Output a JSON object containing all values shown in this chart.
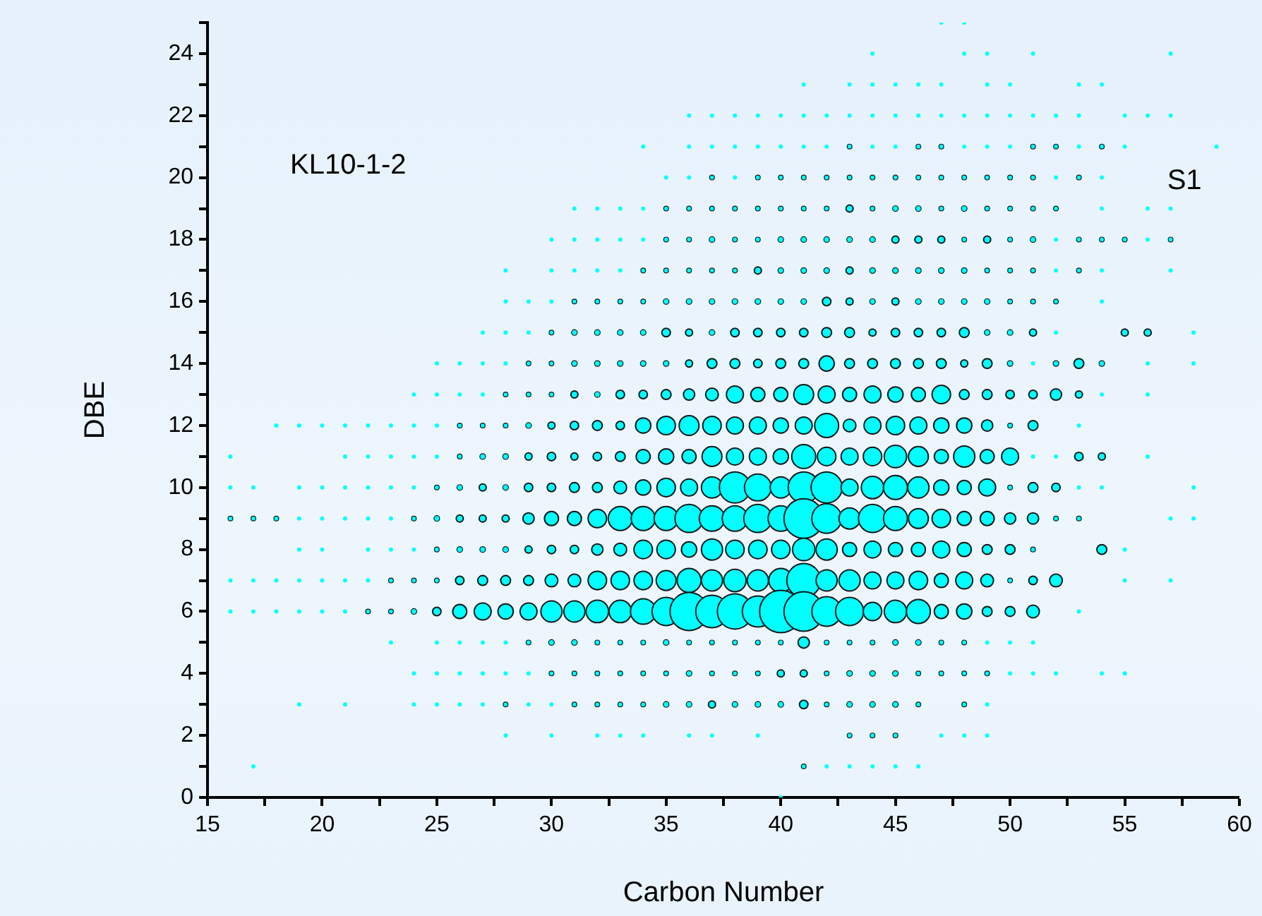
{
  "chart_data": {
    "type": "bubble",
    "xlabel": "Carbon Number",
    "ylabel": "DBE",
    "color": "#00ffff",
    "annotations": [
      "KL10-1-2",
      "S1"
    ],
    "xlim": [
      15,
      60
    ],
    "ylim": [
      0,
      25
    ],
    "xticks": [
      15,
      {
        "value": 17.5,
        "label": null
      },
      20,
      {
        "value": 22.5,
        "label": null
      },
      25,
      {
        "value": 27.5,
        "label": null
      },
      30,
      {
        "value": 32.5,
        "label": null
      },
      35,
      {
        "value": 37.5,
        "label": null
      },
      40,
      {
        "value": 42.5,
        "label": null
      },
      45,
      {
        "value": 47.5,
        "label": null
      },
      50,
      {
        "value": 52.5,
        "label": null
      },
      55,
      {
        "value": 57.5,
        "label": null
      },
      60
    ],
    "yticks": [
      0,
      {
        "value": 1,
        "label": null
      },
      2,
      {
        "value": 3,
        "label": null
      },
      4,
      {
        "value": 5,
        "label": null
      },
      6,
      {
        "value": 7,
        "label": null
      },
      8,
      {
        "value": 9,
        "label": null
      },
      10,
      {
        "value": 11,
        "label": null
      },
      12,
      {
        "value": 13,
        "label": null
      },
      14,
      {
        "value": 15,
        "label": null
      },
      16,
      {
        "value": 17,
        "label": null
      },
      18,
      {
        "value": 19,
        "label": null
      },
      20,
      {
        "value": 21,
        "label": null
      },
      22,
      {
        "value": 23,
        "label": null
      },
      24,
      {
        "value": 25,
        "label": null
      }
    ],
    "series": [
      {
        "x": [
          40
        ],
        "values": [
          0
        ],
        "sizes": [
          0.01
        ]
      },
      {
        "x": [
          17,
          41,
          42,
          43,
          44,
          45,
          46
        ],
        "values": [
          1,
          1,
          1,
          1,
          1,
          1,
          1
        ],
        "sizes": [
          0.01,
          0.013,
          0.01,
          0.01,
          0.01,
          0.01,
          0.01
        ]
      },
      {
        "x": [
          28,
          30,
          32,
          33,
          34,
          36,
          37,
          39,
          43,
          44,
          45,
          47,
          48,
          49
        ],
        "values": [
          2,
          2,
          2,
          2,
          2,
          2,
          2,
          2,
          2,
          2,
          2,
          2,
          2,
          2
        ],
        "sizes": [
          0.01,
          0.01,
          0.01,
          0.01,
          0.01,
          0.01,
          0.01,
          0.01,
          0.013,
          0.013,
          0.013,
          0.01,
          0.01,
          0.01
        ]
      },
      {
        "x": [
          19,
          21,
          24,
          25,
          26,
          27,
          28,
          29,
          30,
          31,
          32,
          33,
          34,
          35,
          36,
          37,
          38,
          39,
          40,
          41,
          42,
          43,
          44,
          45,
          46,
          48,
          49
        ],
        "values": [
          3,
          3,
          3,
          3,
          3,
          3,
          3,
          3,
          3,
          3,
          3,
          3,
          3,
          3,
          3,
          3,
          3,
          3,
          3,
          3,
          3,
          3,
          3,
          3,
          3,
          3,
          3
        ],
        "sizes": [
          0.01,
          0.01,
          0.01,
          0.01,
          0.01,
          0.01,
          0.013,
          0.01,
          0.01,
          0.013,
          0.013,
          0.013,
          0.013,
          0.018,
          0.018,
          0.028,
          0.018,
          0.018,
          0.018,
          0.04,
          0.013,
          0.018,
          0.018,
          0.018,
          0.013,
          0.013,
          0.01
        ]
      },
      {
        "x": [
          24,
          25,
          26,
          27,
          28,
          29,
          30,
          31,
          32,
          33,
          34,
          35,
          36,
          37,
          38,
          39,
          40,
          41,
          42,
          43,
          44,
          45,
          46,
          47,
          48,
          49,
          50,
          51,
          52,
          54,
          55
        ],
        "values": [
          4,
          4,
          4,
          4,
          4,
          4,
          4,
          4,
          4,
          4,
          4,
          4,
          4,
          4,
          4,
          4,
          4,
          4,
          4,
          4,
          4,
          4,
          4,
          4,
          4,
          4,
          4,
          4,
          4,
          4,
          4
        ],
        "sizes": [
          0.01,
          0.01,
          0.01,
          0.01,
          0.01,
          0.01,
          0.013,
          0.013,
          0.013,
          0.013,
          0.013,
          0.013,
          0.018,
          0.013,
          0.013,
          0.013,
          0.028,
          0.028,
          0.013,
          0.018,
          0.018,
          0.018,
          0.013,
          0.013,
          0.013,
          0.013,
          0.01,
          0.01,
          0.01,
          0.01,
          0.01
        ]
      },
      {
        "x": [
          23,
          25,
          26,
          27,
          28,
          29,
          30,
          31,
          32,
          33,
          34,
          35,
          36,
          37,
          38,
          39,
          40,
          41,
          42,
          43,
          44,
          45,
          46,
          47,
          48,
          49,
          50,
          51
        ],
        "values": [
          5,
          5,
          5,
          5,
          5,
          5,
          5,
          5,
          5,
          5,
          5,
          5,
          5,
          5,
          5,
          5,
          5,
          5,
          5,
          5,
          5,
          5,
          5,
          5,
          5,
          5,
          5,
          5
        ],
        "sizes": [
          0.01,
          0.01,
          0.01,
          0.01,
          0.01,
          0.013,
          0.018,
          0.018,
          0.013,
          0.013,
          0.013,
          0.018,
          0.013,
          0.013,
          0.013,
          0.013,
          0.013,
          0.071,
          0.013,
          0.013,
          0.013,
          0.018,
          0.018,
          0.013,
          0.013,
          0.01,
          0.01,
          0.01
        ]
      },
      {
        "x": [
          16,
          17,
          18,
          19,
          20,
          21,
          22,
          23,
          24,
          25,
          26,
          27,
          28,
          29,
          30,
          31,
          32,
          33,
          34,
          35,
          36,
          37,
          38,
          39,
          40,
          41,
          42,
          43,
          44,
          45,
          46,
          47,
          48,
          49,
          50,
          51,
          53
        ],
        "values": [
          6,
          6,
          6,
          6,
          6,
          6,
          6,
          6,
          6,
          6,
          6,
          6,
          6,
          6,
          6,
          6,
          6,
          6,
          6,
          6,
          6,
          6,
          6,
          6,
          6,
          6,
          6,
          6,
          6,
          6,
          6,
          6,
          6,
          6,
          6,
          6,
          6
        ],
        "sizes": [
          0.01,
          0.01,
          0.01,
          0.01,
          0.01,
          0.01,
          0.013,
          0.013,
          0.018,
          0.04,
          0.11,
          0.16,
          0.13,
          0.16,
          0.25,
          0.25,
          0.28,
          0.28,
          0.36,
          0.44,
          0.81,
          0.59,
          0.69,
          0.54,
          1,
          0.87,
          0.49,
          0.44,
          0.19,
          0.28,
          0.32,
          0.11,
          0.13,
          0.054,
          0.054,
          0.09,
          0.01
        ]
      },
      {
        "x": [
          16,
          17,
          18,
          19,
          20,
          21,
          22,
          23,
          24,
          25,
          26,
          27,
          28,
          29,
          30,
          31,
          32,
          33,
          34,
          35,
          36,
          37,
          38,
          39,
          40,
          41,
          42,
          43,
          44,
          45,
          46,
          47,
          48,
          49,
          50,
          51,
          52,
          55,
          57
        ],
        "values": [
          7,
          7,
          7,
          7,
          7,
          7,
          7,
          7,
          7,
          7,
          7,
          7,
          7,
          7,
          7,
          7,
          7,
          7,
          7,
          7,
          7,
          7,
          7,
          7,
          7,
          7,
          7,
          7,
          7,
          7,
          7,
          7,
          7,
          7,
          7,
          7,
          7,
          7,
          7
        ],
        "sizes": [
          0.01,
          0.01,
          0.01,
          0.01,
          0.01,
          0.01,
          0.01,
          0.013,
          0.013,
          0.013,
          0.04,
          0.054,
          0.054,
          0.054,
          0.09,
          0.09,
          0.19,
          0.19,
          0.19,
          0.22,
          0.32,
          0.25,
          0.28,
          0.25,
          0.32,
          0.64,
          0.25,
          0.25,
          0.16,
          0.16,
          0.19,
          0.11,
          0.16,
          0.09,
          0.013,
          0.04,
          0.09,
          0.01,
          0.01
        ]
      },
      {
        "x": [
          19,
          20,
          22,
          23,
          24,
          25,
          26,
          27,
          28,
          29,
          30,
          31,
          32,
          33,
          34,
          35,
          36,
          37,
          38,
          39,
          40,
          41,
          42,
          43,
          44,
          45,
          46,
          47,
          48,
          49,
          50,
          51,
          54,
          55
        ],
        "values": [
          8,
          8,
          8,
          8,
          8,
          8,
          8,
          8,
          8,
          8,
          8,
          8,
          8,
          8,
          8,
          8,
          8,
          8,
          8,
          8,
          8,
          8,
          8,
          8,
          8,
          8,
          8,
          8,
          8,
          8,
          8,
          8,
          8,
          8
        ],
        "sizes": [
          0.01,
          0.01,
          0.01,
          0.01,
          0.01,
          0.013,
          0.018,
          0.018,
          0.018,
          0.028,
          0.04,
          0.04,
          0.071,
          0.09,
          0.19,
          0.19,
          0.13,
          0.25,
          0.19,
          0.19,
          0.19,
          0.28,
          0.25,
          0.11,
          0.16,
          0.11,
          0.11,
          0.16,
          0.11,
          0.054,
          0.054,
          0.013,
          0.054,
          0.01
        ]
      },
      {
        "x": [
          16,
          17,
          18,
          19,
          20,
          21,
          22,
          23,
          24,
          25,
          26,
          27,
          28,
          29,
          30,
          31,
          32,
          33,
          34,
          35,
          36,
          37,
          38,
          39,
          40,
          41,
          42,
          43,
          44,
          45,
          46,
          47,
          48,
          49,
          50,
          51,
          52,
          53,
          57,
          58
        ],
        "values": [
          9,
          9,
          9,
          9,
          9,
          9,
          9,
          9,
          9,
          9,
          9,
          9,
          9,
          9,
          9,
          9,
          9,
          9,
          9,
          9,
          9,
          9,
          9,
          9,
          9,
          9,
          9,
          9,
          9,
          9,
          9,
          9,
          9,
          9,
          9,
          9,
          9,
          9,
          9,
          9
        ],
        "sizes": [
          0.013,
          0.013,
          0.013,
          0.01,
          0.01,
          0.01,
          0.01,
          0.01,
          0.013,
          0.018,
          0.028,
          0.028,
          0.028,
          0.071,
          0.11,
          0.11,
          0.19,
          0.32,
          0.32,
          0.32,
          0.44,
          0.36,
          0.36,
          0.44,
          0.36,
          0.87,
          0.49,
          0.25,
          0.44,
          0.32,
          0.22,
          0.19,
          0.11,
          0.11,
          0.071,
          0.071,
          0.013,
          0.013,
          0.01,
          0.01
        ]
      },
      {
        "x": [
          16,
          17,
          19,
          20,
          21,
          22,
          23,
          24,
          25,
          26,
          27,
          28,
          29,
          30,
          31,
          32,
          33,
          34,
          35,
          36,
          37,
          38,
          39,
          40,
          41,
          42,
          43,
          44,
          45,
          46,
          47,
          48,
          49,
          50,
          51,
          52,
          53,
          54,
          58
        ],
        "values": [
          10,
          10,
          10,
          10,
          10,
          10,
          10,
          10,
          10,
          10,
          10,
          10,
          10,
          10,
          10,
          10,
          10,
          10,
          10,
          10,
          10,
          10,
          10,
          10,
          10,
          10,
          10,
          10,
          10,
          10,
          10,
          10,
          10,
          10,
          10,
          10,
          10,
          10,
          10
        ],
        "sizes": [
          0.01,
          0.01,
          0.01,
          0.01,
          0.01,
          0.01,
          0.01,
          0.01,
          0.013,
          0.018,
          0.028,
          0.018,
          0.04,
          0.04,
          0.054,
          0.054,
          0.09,
          0.13,
          0.19,
          0.16,
          0.25,
          0.54,
          0.4,
          0.25,
          0.54,
          0.54,
          0.16,
          0.28,
          0.32,
          0.25,
          0.13,
          0.11,
          0.16,
          0.013,
          0.054,
          0.04,
          0.01,
          0.01,
          0.01
        ]
      },
      {
        "x": [
          16,
          21,
          22,
          23,
          24,
          25,
          26,
          27,
          28,
          29,
          30,
          31,
          32,
          33,
          34,
          35,
          36,
          37,
          38,
          39,
          40,
          41,
          42,
          43,
          44,
          45,
          46,
          47,
          48,
          49,
          50,
          51,
          52,
          53,
          54,
          56
        ],
        "values": [
          11,
          11,
          11,
          11,
          11,
          11,
          11,
          11,
          11,
          11,
          11,
          11,
          11,
          11,
          11,
          11,
          11,
          11,
          11,
          11,
          11,
          11,
          11,
          11,
          11,
          11,
          11,
          11,
          11,
          11,
          11,
          11,
          11,
          11,
          11,
          11
        ],
        "sizes": [
          0.01,
          0.01,
          0.01,
          0.01,
          0.01,
          0.01,
          0.013,
          0.018,
          0.018,
          0.028,
          0.04,
          0.028,
          0.04,
          0.054,
          0.11,
          0.13,
          0.11,
          0.22,
          0.16,
          0.16,
          0.13,
          0.32,
          0.19,
          0.16,
          0.19,
          0.28,
          0.22,
          0.11,
          0.25,
          0.11,
          0.16,
          0.01,
          0.01,
          0.04,
          0.028,
          0.01
        ]
      },
      {
        "x": [
          18,
          19,
          20,
          21,
          22,
          23,
          24,
          25,
          26,
          27,
          28,
          29,
          30,
          31,
          32,
          33,
          34,
          35,
          36,
          37,
          38,
          39,
          40,
          41,
          42,
          43,
          44,
          45,
          46,
          47,
          48,
          49,
          50,
          51,
          53
        ],
        "values": [
          12,
          12,
          12,
          12,
          12,
          12,
          12,
          12,
          12,
          12,
          12,
          12,
          12,
          12,
          12,
          12,
          12,
          12,
          12,
          12,
          12,
          12,
          12,
          12,
          12,
          12,
          12,
          12,
          12,
          12,
          12,
          12,
          12,
          12,
          12
        ],
        "sizes": [
          0.01,
          0.01,
          0.01,
          0.01,
          0.01,
          0.01,
          0.01,
          0.01,
          0.013,
          0.013,
          0.013,
          0.018,
          0.028,
          0.04,
          0.054,
          0.04,
          0.13,
          0.19,
          0.22,
          0.19,
          0.16,
          0.16,
          0.13,
          0.16,
          0.32,
          0.09,
          0.16,
          0.19,
          0.16,
          0.13,
          0.13,
          0.071,
          0.013,
          0.054,
          0.01
        ]
      },
      {
        "x": [
          24,
          25,
          26,
          27,
          28,
          29,
          30,
          31,
          32,
          33,
          34,
          35,
          36,
          37,
          38,
          39,
          40,
          41,
          42,
          43,
          44,
          45,
          46,
          47,
          48,
          49,
          50,
          51,
          52,
          53,
          54,
          56
        ],
        "values": [
          13,
          13,
          13,
          13,
          13,
          13,
          13,
          13,
          13,
          13,
          13,
          13,
          13,
          13,
          13,
          13,
          13,
          13,
          13,
          13,
          13,
          13,
          13,
          13,
          13,
          13,
          13,
          13,
          13,
          13,
          13,
          13
        ],
        "sizes": [
          0.01,
          0.01,
          0.01,
          0.01,
          0.013,
          0.013,
          0.013,
          0.028,
          0.018,
          0.04,
          0.04,
          0.054,
          0.071,
          0.09,
          0.16,
          0.11,
          0.11,
          0.22,
          0.16,
          0.11,
          0.16,
          0.13,
          0.11,
          0.19,
          0.054,
          0.054,
          0.04,
          0.04,
          0.071,
          0.028,
          0.01,
          0.01
        ]
      },
      {
        "x": [
          25,
          26,
          27,
          28,
          29,
          30,
          31,
          32,
          33,
          34,
          35,
          36,
          37,
          38,
          39,
          40,
          41,
          42,
          43,
          44,
          45,
          46,
          47,
          48,
          49,
          50,
          51,
          52,
          53,
          54,
          56,
          58
        ],
        "values": [
          14,
          14,
          14,
          14,
          14,
          14,
          14,
          14,
          14,
          14,
          14,
          14,
          14,
          14,
          14,
          14,
          14,
          14,
          14,
          14,
          14,
          14,
          14,
          14,
          14,
          14,
          14,
          14,
          14,
          14,
          14,
          14
        ],
        "sizes": [
          0.01,
          0.01,
          0.01,
          0.01,
          0.013,
          0.013,
          0.018,
          0.018,
          0.018,
          0.018,
          0.018,
          0.028,
          0.054,
          0.054,
          0.04,
          0.054,
          0.054,
          0.13,
          0.054,
          0.054,
          0.054,
          0.054,
          0.054,
          0.028,
          0.054,
          0.018,
          0.01,
          0.018,
          0.054,
          0.018,
          0.01,
          0.01
        ]
      },
      {
        "x": [
          27,
          28,
          29,
          30,
          31,
          32,
          33,
          34,
          35,
          36,
          37,
          38,
          39,
          40,
          41,
          42,
          43,
          44,
          45,
          46,
          47,
          48,
          49,
          50,
          51,
          52,
          55,
          56,
          58
        ],
        "values": [
          15,
          15,
          15,
          15,
          15,
          15,
          15,
          15,
          15,
          15,
          15,
          15,
          15,
          15,
          15,
          15,
          15,
          15,
          15,
          15,
          15,
          15,
          15,
          15,
          15,
          15,
          15,
          15,
          15
        ],
        "sizes": [
          0.01,
          0.01,
          0.01,
          0.013,
          0.018,
          0.018,
          0.018,
          0.018,
          0.04,
          0.028,
          0.018,
          0.04,
          0.04,
          0.04,
          0.04,
          0.054,
          0.054,
          0.028,
          0.04,
          0.04,
          0.04,
          0.054,
          0.018,
          0.018,
          0.028,
          0.01,
          0.028,
          0.028,
          0.01
        ]
      },
      {
        "x": [
          28,
          29,
          30,
          31,
          32,
          33,
          34,
          35,
          36,
          37,
          38,
          39,
          40,
          41,
          42,
          43,
          44,
          45,
          46,
          47,
          48,
          49,
          50,
          51,
          52,
          54
        ],
        "values": [
          16,
          16,
          16,
          16,
          16,
          16,
          16,
          16,
          16,
          16,
          16,
          16,
          16,
          16,
          16,
          16,
          16,
          16,
          16,
          16,
          16,
          16,
          16,
          16,
          16,
          16
        ],
        "sizes": [
          0.01,
          0.01,
          0.01,
          0.013,
          0.013,
          0.013,
          0.013,
          0.018,
          0.018,
          0.018,
          0.018,
          0.018,
          0.018,
          0.018,
          0.04,
          0.028,
          0.018,
          0.028,
          0.018,
          0.018,
          0.018,
          0.018,
          0.013,
          0.013,
          0.013,
          0.01
        ]
      },
      {
        "x": [
          28,
          30,
          31,
          32,
          33,
          34,
          35,
          36,
          37,
          38,
          39,
          40,
          41,
          42,
          43,
          44,
          45,
          46,
          47,
          48,
          49,
          50,
          51,
          52,
          53,
          54,
          57
        ],
        "values": [
          17,
          17,
          17,
          17,
          17,
          17,
          17,
          17,
          17,
          17,
          17,
          17,
          17,
          17,
          17,
          17,
          17,
          17,
          17,
          17,
          17,
          17,
          17,
          17,
          17,
          17,
          17
        ],
        "sizes": [
          0.01,
          0.01,
          0.01,
          0.01,
          0.01,
          0.013,
          0.013,
          0.013,
          0.013,
          0.013,
          0.028,
          0.018,
          0.018,
          0.018,
          0.028,
          0.018,
          0.018,
          0.018,
          0.018,
          0.018,
          0.013,
          0.013,
          0.013,
          0.01,
          0.013,
          0.01,
          0.01
        ]
      },
      {
        "x": [
          30,
          31,
          32,
          33,
          34,
          35,
          36,
          37,
          38,
          39,
          40,
          41,
          42,
          43,
          44,
          45,
          46,
          47,
          48,
          49,
          50,
          51,
          52,
          53,
          54,
          55,
          56,
          57
        ],
        "values": [
          18,
          18,
          18,
          18,
          18,
          18,
          18,
          18,
          18,
          18,
          18,
          18,
          18,
          18,
          18,
          18,
          18,
          18,
          18,
          18,
          18,
          18,
          18,
          18,
          18,
          18,
          18,
          18
        ],
        "sizes": [
          0.01,
          0.01,
          0.01,
          0.01,
          0.01,
          0.013,
          0.013,
          0.018,
          0.013,
          0.013,
          0.018,
          0.018,
          0.018,
          0.018,
          0.018,
          0.028,
          0.028,
          0.028,
          0.013,
          0.028,
          0.013,
          0.018,
          0.01,
          0.013,
          0.013,
          0.013,
          0.01,
          0.013
        ]
      },
      {
        "x": [
          31,
          32,
          33,
          34,
          35,
          36,
          37,
          38,
          39,
          40,
          41,
          42,
          43,
          44,
          45,
          46,
          47,
          48,
          49,
          50,
          51,
          52,
          54,
          56,
          57
        ],
        "values": [
          19,
          19,
          19,
          19,
          19,
          19,
          19,
          19,
          19,
          19,
          19,
          19,
          19,
          19,
          19,
          19,
          19,
          19,
          19,
          19,
          19,
          19,
          19,
          19,
          19
        ],
        "sizes": [
          0.01,
          0.01,
          0.01,
          0.01,
          0.013,
          0.013,
          0.013,
          0.013,
          0.013,
          0.013,
          0.013,
          0.013,
          0.028,
          0.013,
          0.018,
          0.018,
          0.013,
          0.018,
          0.013,
          0.013,
          0.013,
          0.013,
          0.01,
          0.01,
          0.01
        ]
      },
      {
        "x": [
          35,
          36,
          37,
          38,
          39,
          40,
          41,
          42,
          43,
          44,
          45,
          46,
          47,
          48,
          49,
          50,
          51,
          52,
          53,
          54
        ],
        "values": [
          20,
          20,
          20,
          20,
          20,
          20,
          20,
          20,
          20,
          20,
          20,
          20,
          20,
          20,
          20,
          20,
          20,
          20,
          20,
          20
        ],
        "sizes": [
          0.01,
          0.01,
          0.013,
          0.01,
          0.013,
          0.013,
          0.013,
          0.013,
          0.013,
          0.013,
          0.013,
          0.013,
          0.013,
          0.013,
          0.013,
          0.013,
          0.013,
          0.01,
          0.013,
          0.01
        ]
      },
      {
        "x": [
          34,
          36,
          37,
          38,
          39,
          40,
          41,
          42,
          43,
          44,
          45,
          46,
          47,
          48,
          49,
          50,
          51,
          52,
          53,
          54,
          55,
          59
        ],
        "values": [
          21,
          21,
          21,
          21,
          21,
          21,
          21,
          21,
          21,
          21,
          21,
          21,
          21,
          21,
          21,
          21,
          21,
          21,
          21,
          21,
          21,
          21
        ],
        "sizes": [
          0.01,
          0.01,
          0.01,
          0.01,
          0.01,
          0.01,
          0.01,
          0.01,
          0.013,
          0.01,
          0.01,
          0.013,
          0.013,
          0.01,
          0.01,
          0.01,
          0.013,
          0.013,
          0.01,
          0.013,
          0.01,
          0.01
        ]
      },
      {
        "x": [
          36,
          37,
          38,
          39,
          40,
          41,
          42,
          43,
          44,
          45,
          46,
          47,
          48,
          49,
          50,
          51,
          52,
          53,
          55,
          56,
          57
        ],
        "values": [
          22,
          22,
          22,
          22,
          22,
          22,
          22,
          22,
          22,
          22,
          22,
          22,
          22,
          22,
          22,
          22,
          22,
          22,
          22,
          22,
          22
        ],
        "sizes": [
          0.01,
          0.01,
          0.01,
          0.01,
          0.01,
          0.01,
          0.01,
          0.01,
          0.01,
          0.01,
          0.01,
          0.01,
          0.01,
          0.01,
          0.01,
          0.01,
          0.01,
          0.01,
          0.01,
          0.01,
          0.01
        ]
      },
      {
        "x": [
          41,
          43,
          44,
          45,
          46,
          47,
          49,
          50,
          53,
          54
        ],
        "values": [
          23,
          23,
          23,
          23,
          23,
          23,
          23,
          23,
          23,
          23
        ],
        "sizes": [
          0.01,
          0.01,
          0.01,
          0.01,
          0.01,
          0.01,
          0.01,
          0.01,
          0.01,
          0.01
        ]
      },
      {
        "x": [
          44,
          48,
          49,
          51,
          57
        ],
        "values": [
          24,
          24,
          24,
          24,
          24
        ],
        "sizes": [
          0.01,
          0.01,
          0.01,
          0.01,
          0.01
        ]
      },
      {
        "x": [
          47,
          48
        ],
        "values": [
          25,
          25
        ],
        "sizes": [
          0.01,
          0.01
        ]
      }
    ]
  }
}
